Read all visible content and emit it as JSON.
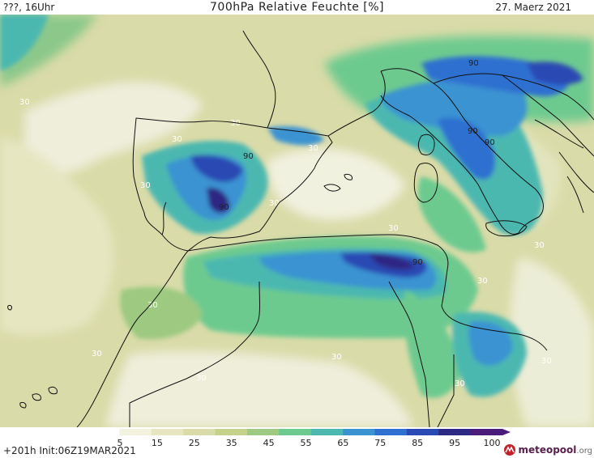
{
  "header": {
    "left": "???, 16Uhr",
    "title": "700hPa Relative Feuchte [%]",
    "date": "27. Maerz 2021"
  },
  "footer": {
    "run_info": "+201h  Init:06Z19MAR2021",
    "brand": "meteopool",
    "brand_suffix": ".org",
    "brand_icon": "meteopool-logo-icon"
  },
  "colorbar": {
    "ticks": [
      "5",
      "15",
      "25",
      "35",
      "45",
      "55",
      "65",
      "75",
      "85",
      "95",
      "100"
    ],
    "colors": [
      "#ffffff",
      "#f2f2df",
      "#e6e6c1",
      "#d9dba8",
      "#c5d28c",
      "#9dc980",
      "#6dca8f",
      "#4cb8b0",
      "#3b93d2",
      "#2e6fd0",
      "#2a4ab3",
      "#2d2883",
      "#4b1c79"
    ]
  },
  "contour_labels": {
    "low": "30",
    "high": "90"
  }
}
